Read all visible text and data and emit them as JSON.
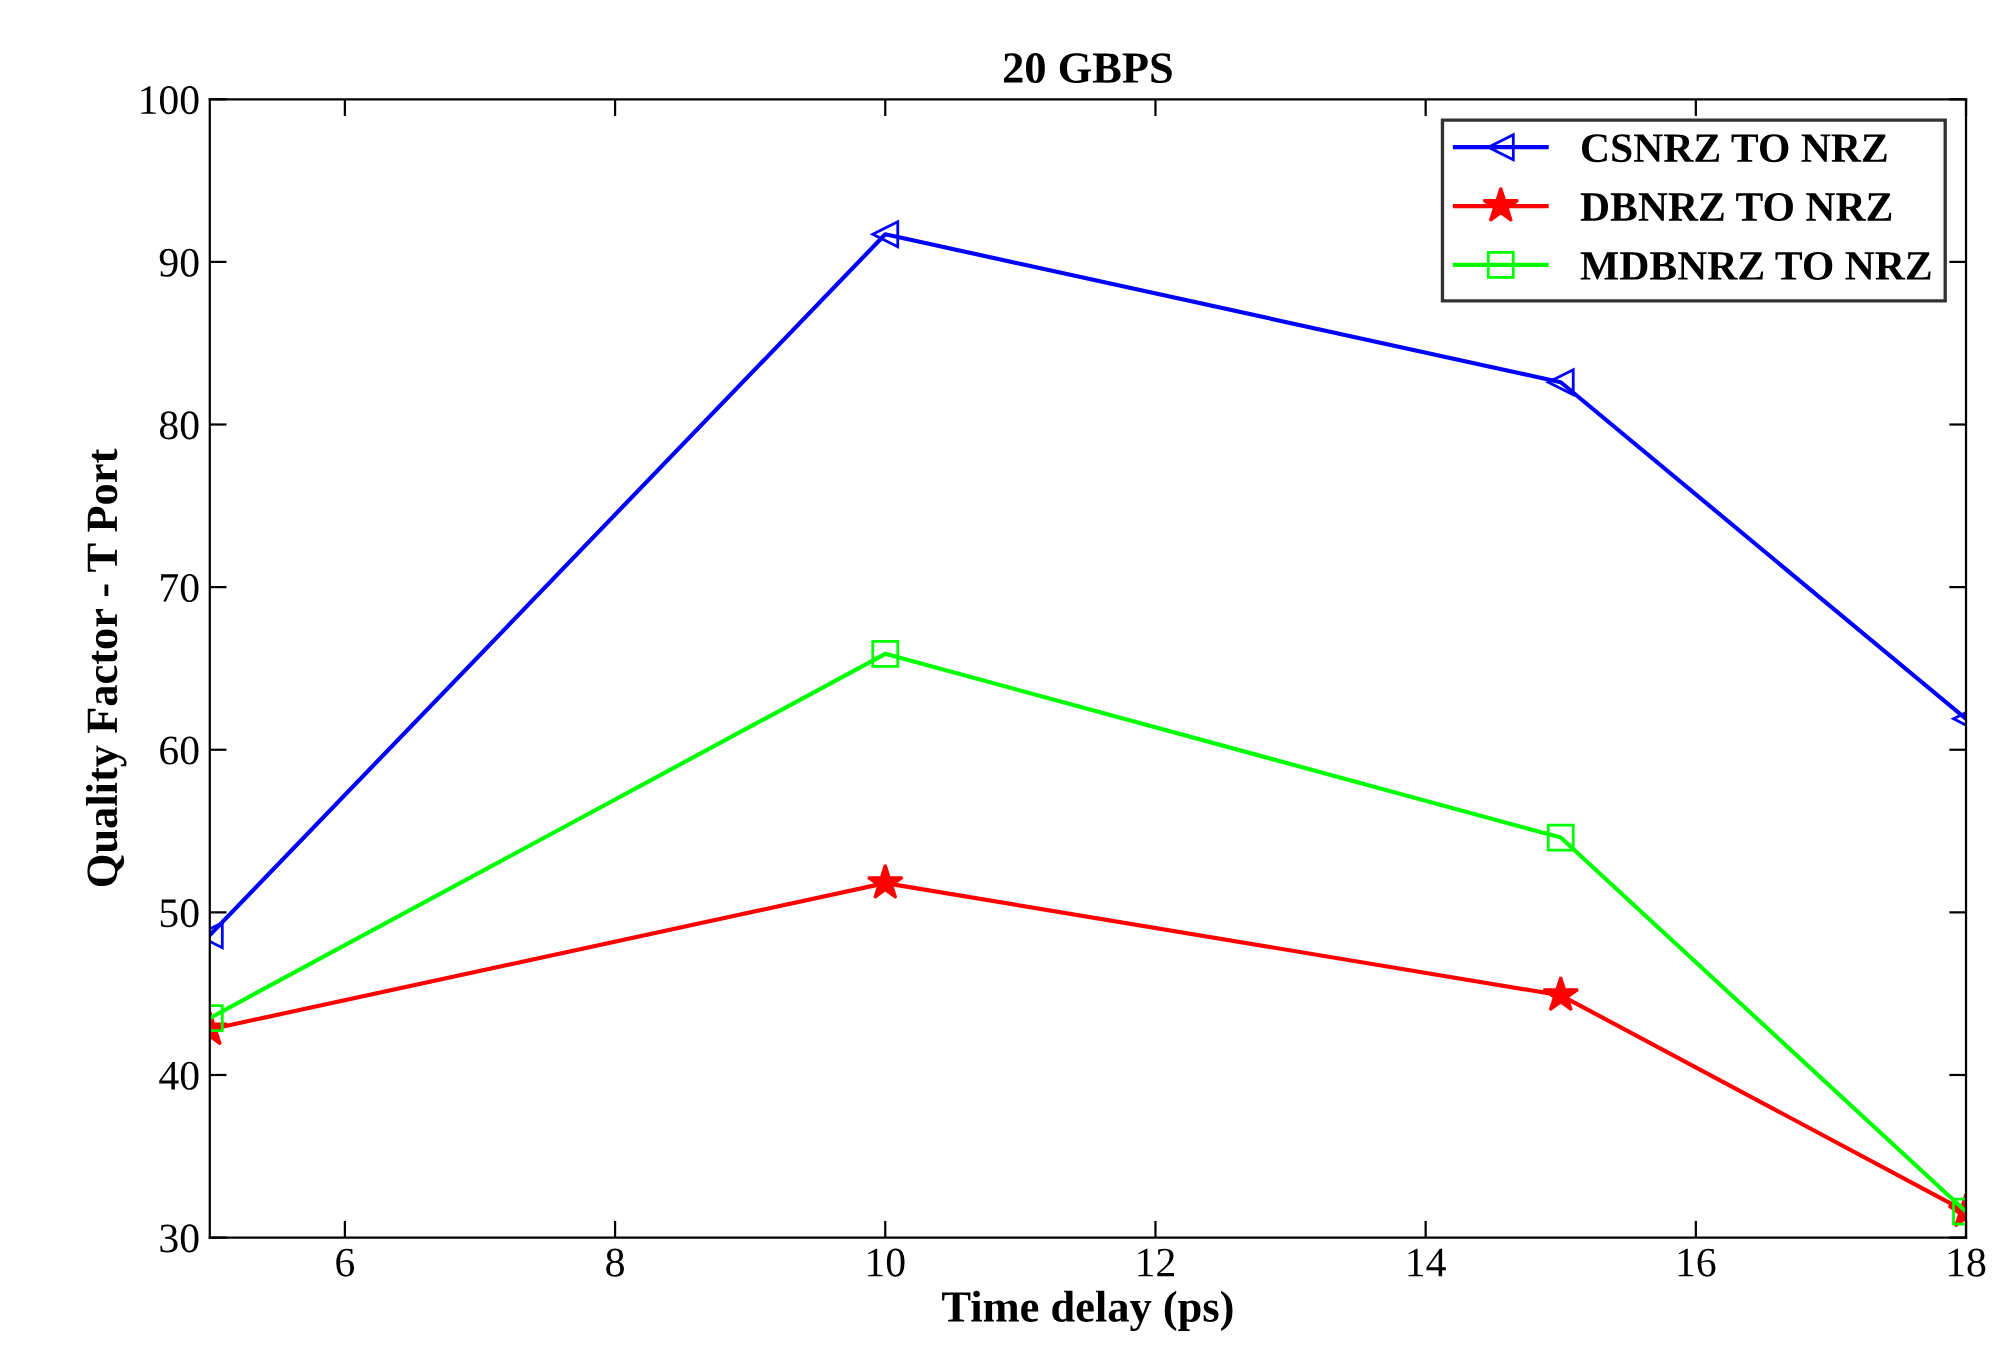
{
  "chart_data": {
    "type": "line",
    "title": "20 GBPS",
    "xlabel": "Time delay (ps)",
    "ylabel": "Quality Factor - T Port",
    "x": [
      5,
      10,
      15,
      18
    ],
    "series": [
      {
        "name": "CSNRZ TO NRZ",
        "color": "#0000ff",
        "marker": "triangle",
        "values": [
          48.6,
          91.7,
          82.6,
          61.9
        ]
      },
      {
        "name": "DBNRZ TO NRZ",
        "color": "#ff0000",
        "marker": "star",
        "values": [
          42.8,
          51.8,
          44.9,
          31.6
        ]
      },
      {
        "name": "MDBNRZ TO NRZ",
        "color": "#00ff00",
        "marker": "square",
        "values": [
          43.5,
          65.9,
          54.6,
          31.6
        ]
      }
    ],
    "xlim": [
      5,
      18
    ],
    "xticks": [
      6,
      8,
      10,
      12,
      14,
      16,
      18
    ],
    "ylim": [
      30,
      100
    ],
    "yticks": [
      30,
      40,
      50,
      60,
      70,
      80,
      90,
      100
    ],
    "grid": false,
    "legend": "top right",
    "line_style": "solid"
  }
}
